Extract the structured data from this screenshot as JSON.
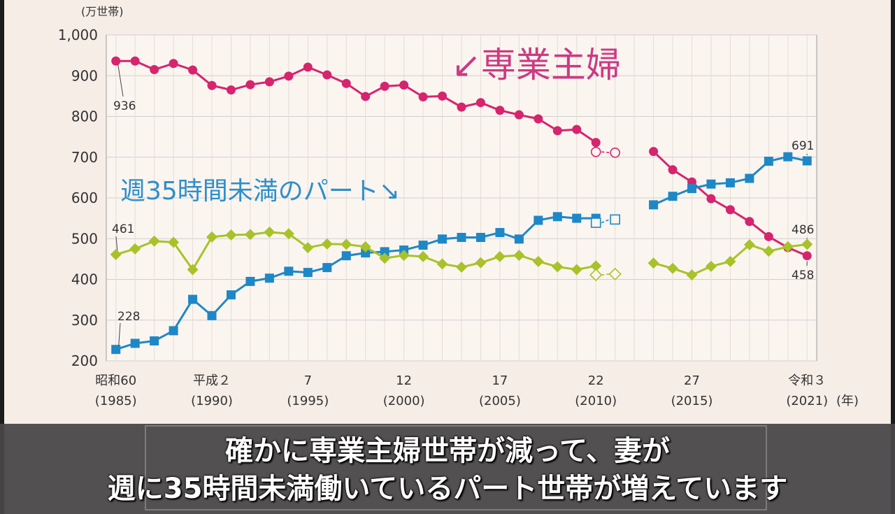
{
  "chart_data": {
    "type": "line",
    "unit_label": "(万世帯)",
    "x_unit": "(年)",
    "y_ticks": [
      "1,000",
      "900",
      "800",
      "700",
      "600",
      "500",
      "400",
      "300",
      "200"
    ],
    "ylim": [
      200,
      1000
    ],
    "x": [
      1985,
      1986,
      1987,
      1988,
      1989,
      1990,
      1991,
      1992,
      1993,
      1994,
      1995,
      1996,
      1997,
      1998,
      1999,
      2000,
      2001,
      2002,
      2003,
      2004,
      2005,
      2006,
      2007,
      2008,
      2009,
      2010,
      2011,
      2012,
      2013,
      2014,
      2015,
      2016,
      2017,
      2018,
      2019,
      2020,
      2021
    ],
    "x_ticks": [
      {
        "year": 1985,
        "era": "昭和60",
        "ad": "(1985)"
      },
      {
        "year": 1990,
        "era": "平成２",
        "ad": "(1990)"
      },
      {
        "year": 1995,
        "era": "7",
        "ad": "(1995)"
      },
      {
        "year": 2000,
        "era": "12",
        "ad": "(2000)"
      },
      {
        "year": 2005,
        "era": "17",
        "ad": "(2005)"
      },
      {
        "year": 2010,
        "era": "22",
        "ad": "(2010)"
      },
      {
        "year": 2015,
        "era": "27",
        "ad": "(2015)"
      },
      {
        "year": 2021,
        "era": "令和３",
        "ad": "(2021)"
      }
    ],
    "grid": true,
    "series": [
      {
        "key": "fulltime_housewife",
        "color": "#d6246e",
        "marker": "circle",
        "values": [
          936,
          936,
          915,
          930,
          914,
          876,
          865,
          878,
          885,
          899,
          921,
          902,
          881,
          849,
          874,
          877,
          848,
          850,
          823,
          834,
          815,
          804,
          794,
          765,
          768,
          736,
          null,
          null,
          714,
          669,
          639,
          598,
          571,
          542,
          505,
          478,
          458
        ],
        "estimates": [
          {
            "year": 2010,
            "value": 713
          },
          {
            "year": 2011,
            "value": 711
          }
        ]
      },
      {
        "key": "parttime_wife",
        "color": "#1e88c7",
        "marker": "square",
        "values": [
          228,
          243,
          249,
          274,
          351,
          311,
          362,
          395,
          403,
          420,
          417,
          429,
          458,
          465,
          468,
          472,
          484,
          499,
          503,
          503,
          515,
          499,
          545,
          554,
          550,
          550,
          null,
          null,
          583,
          604,
          623,
          634,
          637,
          648,
          690,
          701,
          691
        ],
        "estimates": [
          {
            "year": 2010,
            "value": 539
          },
          {
            "year": 2011,
            "value": 547
          }
        ]
      },
      {
        "key": "other_dual",
        "color": "#a8c22a",
        "marker": "diamond",
        "values": [
          461,
          475,
          494,
          491,
          424,
          504,
          509,
          510,
          516,
          512,
          478,
          487,
          486,
          480,
          452,
          459,
          456,
          438,
          430,
          441,
          456,
          459,
          444,
          431,
          424,
          433,
          null,
          null,
          440,
          427,
          411,
          432,
          444,
          485,
          469,
          480,
          486
        ],
        "estimates": [
          {
            "year": 2010,
            "value": 411
          },
          {
            "year": 2011,
            "value": 413
          }
        ]
      }
    ],
    "data_labels": [
      {
        "series": "fulltime_housewife",
        "year": 1985,
        "text": "936"
      },
      {
        "series": "parttime_wife",
        "year": 1985,
        "text": "228"
      },
      {
        "series": "other_dual",
        "year": 1985,
        "text": "461"
      },
      {
        "series": "parttime_wife",
        "year": 2021,
        "text": "691"
      },
      {
        "series": "other_dual",
        "year": 2021,
        "text": "486"
      },
      {
        "series": "fulltime_housewife",
        "year": 2021,
        "text": "458"
      }
    ]
  },
  "annotations": {
    "housewife_label": "↙専業主婦",
    "parttime_label": "週35時間未満のパート↘"
  },
  "subtitles": {
    "line1": "確かに専業主婦世帯が減って、妻が",
    "line2": "週に35時間未満働いているパート世帯が増えています"
  }
}
